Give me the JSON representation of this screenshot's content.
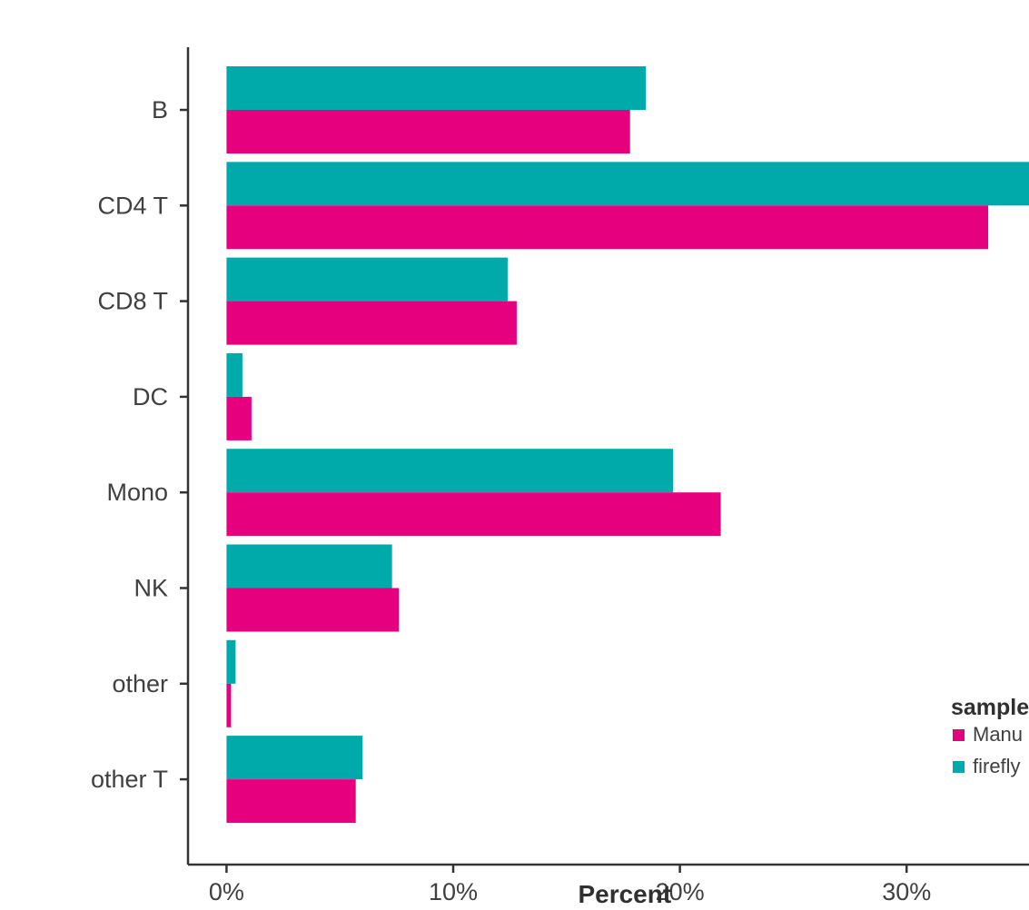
{
  "chart_data": {
    "type": "bar",
    "orientation": "horizontal",
    "categories": [
      "B",
      "CD4 T",
      "CD8 T",
      "DC",
      "Mono",
      "NK",
      "other",
      "other T"
    ],
    "series": [
      {
        "name": "Manu",
        "color": "#E6007E",
        "values": [
          17.8,
          33.6,
          12.8,
          1.1,
          21.8,
          7.6,
          0.2,
          5.7
        ]
      },
      {
        "name": "firefly",
        "color": "#00AAAA",
        "values": [
          18.5,
          35.4,
          12.4,
          0.7,
          19.7,
          7.3,
          0.4,
          6.0
        ]
      }
    ],
    "xlabel": "Percent",
    "ylabel": "",
    "xlim": [
      -1.7,
      35.4
    ],
    "xticks": [
      0,
      10,
      20,
      30
    ],
    "xtick_labels": [
      "0%",
      "10%",
      "20%",
      "30%"
    ],
    "grid": false,
    "legend": {
      "title": "sample",
      "placement": "right",
      "entries": [
        "Manu",
        "firefly"
      ]
    }
  }
}
